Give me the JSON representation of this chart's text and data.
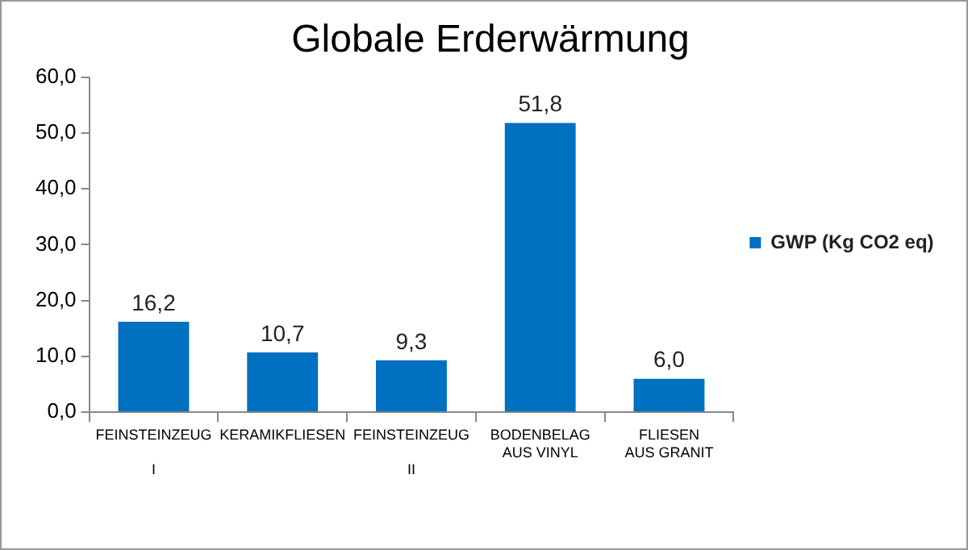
{
  "chart_data": {
    "type": "bar",
    "title": "Globale Erderwärmung",
    "categories": [
      "FEINSTEINZEUG\n\nI",
      "KERAMIKFLIESEN",
      "FEINSTEINZEUG\n\nII",
      "BODENBELAG\nAUS VINYL",
      "FLIESEN\nAUS GRANIT"
    ],
    "series": [
      {
        "name": "GWP (Kg CO2 eq)",
        "color": "#0070c0",
        "values": [
          16.2,
          10.7,
          9.3,
          51.8,
          6.0
        ],
        "value_labels": [
          "16,2",
          "10,7",
          "9,3",
          "51,8",
          "6,0"
        ]
      }
    ],
    "ylim": [
      0,
      60
    ],
    "yticks": [
      {
        "value": 0,
        "label": "0,0"
      },
      {
        "value": 10,
        "label": "10,0"
      },
      {
        "value": 20,
        "label": "20,0"
      },
      {
        "value": 30,
        "label": "30,0"
      },
      {
        "value": 40,
        "label": "40,0"
      },
      {
        "value": 50,
        "label": "50,0"
      },
      {
        "value": 60,
        "label": "60,0"
      }
    ],
    "legend": "right",
    "grid": false
  }
}
